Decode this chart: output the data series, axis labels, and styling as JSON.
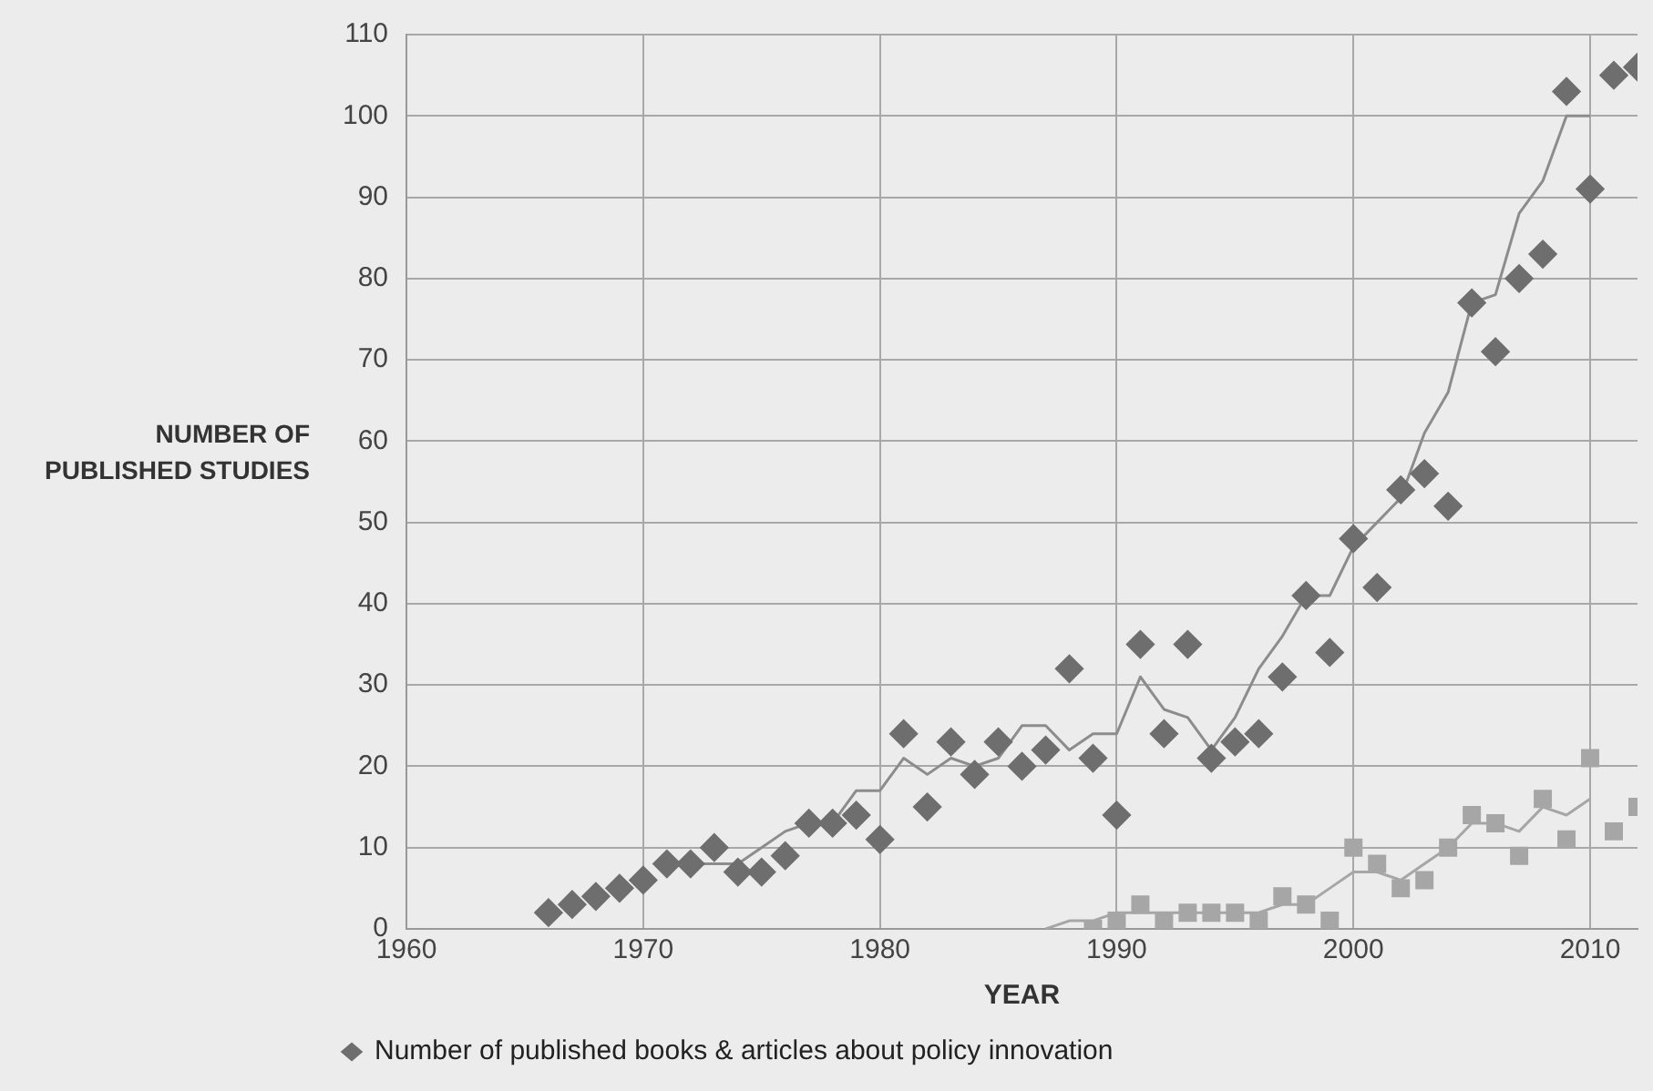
{
  "chart_data": {
    "type": "scatter",
    "xlabel": "YEAR",
    "ylabel": "NUMBER OF PUBLISHED STUDIES",
    "xlim": [
      1960,
      2012
    ],
    "xticks": [
      1960,
      1970,
      1980,
      1990,
      2000,
      2010
    ],
    "ylim": [
      0,
      110
    ],
    "yticks": [
      0,
      10,
      20,
      30,
      40,
      50,
      60,
      70,
      80,
      90,
      100,
      110
    ],
    "grid": true,
    "legend": "bottom left",
    "series": [
      {
        "name": "Number of published books & articles about policy innovation",
        "type": "scatter",
        "marker": "diamond",
        "color": "#6e6e6e",
        "x": [
          1966,
          1967,
          1968,
          1969,
          1970,
          1971,
          1972,
          1973,
          1974,
          1975,
          1976,
          1977,
          1978,
          1979,
          1980,
          1981,
          1982,
          1983,
          1984,
          1985,
          1986,
          1987,
          1988,
          1989,
          1990,
          1991,
          1992,
          1993,
          1994,
          1995,
          1996,
          1997,
          1998,
          1999,
          2000,
          2001,
          2002,
          2003,
          2004,
          2005,
          2006,
          2007,
          2008,
          2009,
          2010,
          2011,
          2012
        ],
        "values": [
          2,
          3,
          4,
          5,
          6,
          8,
          8,
          10,
          7,
          7,
          9,
          13,
          13,
          14,
          11,
          24,
          15,
          23,
          19,
          23,
          20,
          22,
          32,
          21,
          14,
          35,
          24,
          35,
          21,
          23,
          24,
          31,
          41,
          34,
          48,
          42,
          54,
          56,
          52,
          77,
          71,
          80,
          83,
          103,
          91,
          105,
          106
        ]
      },
      {
        "type": "line",
        "marker": "none",
        "color": "#8c8c8c",
        "x": [
          1971,
          1972,
          1973,
          1974,
          1975,
          1976,
          1977,
          1978,
          1979,
          1980,
          1981,
          1982,
          1983,
          1984,
          1985,
          1986,
          1987,
          1988,
          1989,
          1990,
          1991,
          1992,
          1993,
          1994,
          1995,
          1996,
          1997,
          1998,
          1999,
          2000,
          2001,
          2002,
          2003,
          2004,
          2005,
          2006,
          2007,
          2008,
          2009,
          2010
        ],
        "values": [
          8,
          8,
          8,
          8,
          10,
          12,
          13,
          13,
          17,
          17,
          21,
          19,
          21,
          20,
          21,
          25,
          25,
          22,
          24,
          24,
          31,
          27,
          26,
          22,
          26,
          32,
          36,
          41,
          41,
          47,
          50,
          53,
          61,
          66,
          77,
          78,
          88,
          92,
          100,
          100
        ]
      },
      {
        "type": "scatter",
        "marker": "square",
        "color": "#a6a6a6",
        "x": [
          1989,
          1990,
          1991,
          1992,
          1993,
          1994,
          1995,
          1996,
          1997,
          1998,
          1999,
          2000,
          2001,
          2002,
          2003,
          2004,
          2005,
          2006,
          2007,
          2008,
          2009,
          2010,
          2011,
          2012
        ],
        "values": [
          0,
          1,
          3,
          1,
          2,
          2,
          2,
          1,
          4,
          3,
          1,
          10,
          8,
          5,
          6,
          10,
          14,
          13,
          9,
          16,
          11,
          21,
          12,
          15
        ]
      },
      {
        "type": "line",
        "marker": "none",
        "color": "#a6a6a6",
        "x": [
          1987,
          1988,
          1989,
          1990,
          1991,
          1992,
          1993,
          1994,
          1995,
          1996,
          1997,
          1998,
          1999,
          2000,
          2001,
          2002,
          2003,
          2004,
          2005,
          2006,
          2007,
          2008,
          2009,
          2010
        ],
        "values": [
          0,
          1,
          1,
          2,
          2,
          2,
          2,
          2,
          2,
          2,
          3,
          3,
          5,
          7,
          7,
          6,
          8,
          10,
          13,
          13,
          12,
          15,
          14,
          16
        ]
      }
    ]
  }
}
